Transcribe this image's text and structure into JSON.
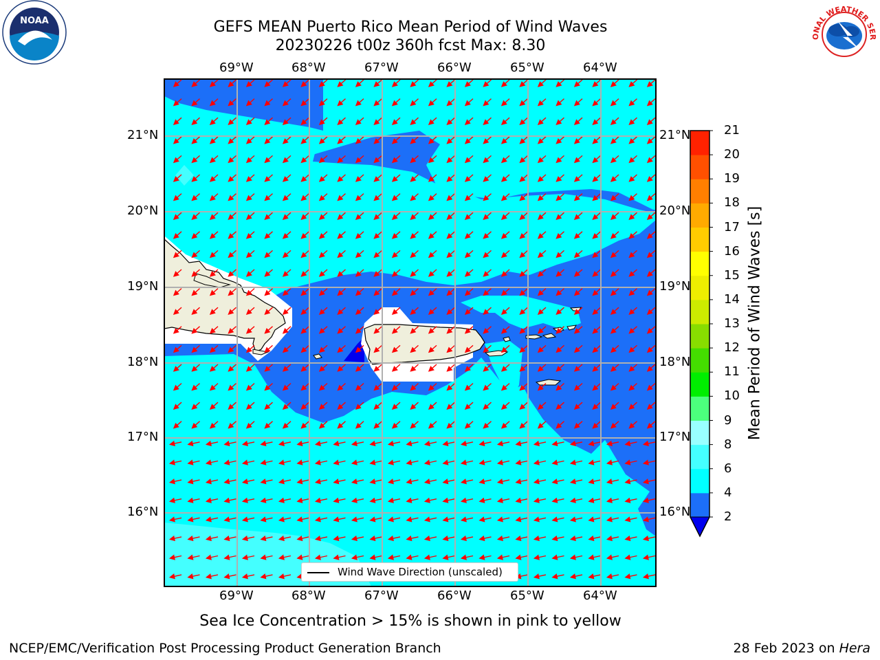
{
  "title": {
    "line1": "GEFS MEAN Puerto Rico Mean Period of Wind Waves",
    "line2": "20230226 t00z 360h fcst   Max: 8.30"
  },
  "map": {
    "lon_ticks": [
      "69°W",
      "68°W",
      "67°W",
      "66°W",
      "65°W",
      "64°W"
    ],
    "lat_ticks": [
      "21°N",
      "20°N",
      "19°N",
      "18°N",
      "17°N",
      "16°N"
    ],
    "lon_range": [
      -70.0,
      -63.25
    ],
    "lat_range": [
      15.05,
      21.75
    ],
    "arrow_color": "#ff0000",
    "land_color": "#efefdc",
    "coast_color": "#000000"
  },
  "colorbar": {
    "label": "Mean Period of Wind Waves [s]",
    "ticks": [
      "2",
      "4",
      "6",
      "8",
      "9",
      "10",
      "11",
      "12",
      "13",
      "14",
      "15",
      "16",
      "17",
      "18",
      "19",
      "20",
      "21"
    ],
    "under_color": "#0000ee",
    "colors": [
      "#1c6ff8",
      "#00ffff",
      "#44ffff",
      "#99ffff",
      "#4cff7d",
      "#00ee00",
      "#44dd00",
      "#88dd00",
      "#cceb00",
      "#eeee00",
      "#ffff00",
      "#ffcc00",
      "#ffaa00",
      "#ff7f00",
      "#ff5000",
      "#ff2200"
    ]
  },
  "legend": {
    "label": "Wind Wave Direction (unscaled)"
  },
  "note": "Sea Ice Concentration > 15% is shown in pink to yellow",
  "footer": {
    "left": "NCEP/EMC/Verification Post Processing Product Generation Branch",
    "date": "28 Feb 2023 on",
    "machine": "Hera"
  },
  "logos": {
    "left": "NOAA",
    "right": "NATIONAL WEATHER SERVICE"
  }
}
